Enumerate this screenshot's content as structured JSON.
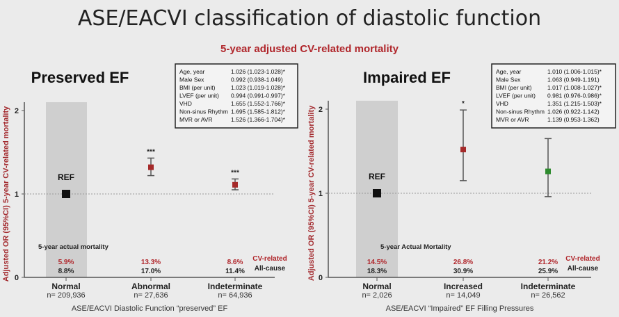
{
  "title": "ASE/EACVI classification of diastolic function",
  "subtitle": "5-year adjusted CV-related mortality",
  "colors": {
    "red": "#a52a2a",
    "green": "#2e8b2e",
    "band": "#cfcfcf",
    "accent": "#b0262b"
  },
  "chart_data": [
    {
      "type": "scatter",
      "title": "Preserved EF",
      "ylabel": "Adjusted OR (95%CI) 5-year CV-related mortality",
      "xlabel": "ASE/EACVI Diastolic Function “preserved” EF",
      "ylim": [
        0,
        2.1
      ],
      "yticks": [
        "0",
        "1",
        "2"
      ],
      "reference_line": 1,
      "ref_label": "REF",
      "mortality_heading": "5-year actual mortality",
      "cv_label": "CV-related",
      "allcause_label": "All-cause",
      "categories": [
        {
          "name": "Normal",
          "n": "n= 209,936",
          "or": 1.0,
          "lo": null,
          "hi": null,
          "sig": "",
          "color": "#111111",
          "cv": "5.9%",
          "all": "8.8%",
          "ref": true
        },
        {
          "name": "Abnormal",
          "n": "n= 27,636",
          "or": 1.32,
          "lo": 1.22,
          "hi": 1.43,
          "sig": "***",
          "color": "#a52a2a",
          "cv": "13.3%",
          "all": "17.0%",
          "ref": false
        },
        {
          "name": "Indeterminate",
          "n": "n= 64,936",
          "or": 1.11,
          "lo": 1.05,
          "hi": 1.18,
          "sig": "***",
          "color": "#a52a2a",
          "cv": "8.6%",
          "all": "11.4%",
          "ref": false
        }
      ],
      "covariates": [
        {
          "name": "Age, year",
          "value": "1.026 (1.023-1.028)*"
        },
        {
          "name": "Male Sex",
          "value": "0.992 (0.938-1.049)"
        },
        {
          "name": "BMI (per unit)",
          "value": "1.023 (1.019-1.028)*"
        },
        {
          "name": "LVEF (per unit)",
          "value": "0.994 (0.991-0.997)*"
        },
        {
          "name": "VHD",
          "value": "1.655 (1.552-1.766)*"
        },
        {
          "name": "Non-sinus Rhythm",
          "value": "1.695 (1.585-1.812)*"
        },
        {
          "name": "MVR or AVR",
          "value": "1.526 (1.366-1.704)*"
        }
      ]
    },
    {
      "type": "scatter",
      "title": "Impaired EF",
      "ylabel": "Adjusted OR (95%CI) 5-year CV-related mortality",
      "xlabel": "ASE/EACVI “Impaired” EF Filling Pressures",
      "ylim": [
        0,
        2.1
      ],
      "yticks": [
        "0",
        "1",
        "2"
      ],
      "reference_line": 1,
      "ref_label": "REF",
      "mortality_heading": "5-year Actual Mortality",
      "cv_label": "CV-related",
      "allcause_label": "All-cause",
      "categories": [
        {
          "name": "Normal",
          "n": "n= 2,026",
          "or": 1.0,
          "lo": null,
          "hi": null,
          "sig": "",
          "color": "#111111",
          "cv": "14.5%",
          "all": "18.3%",
          "ref": true
        },
        {
          "name": "Increased",
          "n": "n= 14,049",
          "or": 1.52,
          "lo": 1.15,
          "hi": 1.99,
          "sig": "*",
          "color": "#a52a2a",
          "cv": "26.8%",
          "all": "30.9%",
          "ref": false
        },
        {
          "name": "Indeterminate",
          "n": "n= 26,562",
          "or": 1.26,
          "lo": 0.96,
          "hi": 1.65,
          "sig": "",
          "color": "#2e8b2e",
          "cv": "21.2%",
          "all": "25.9%",
          "ref": false
        }
      ],
      "covariates": [
        {
          "name": "Age, year",
          "value": "1.010 (1.006-1.015)*"
        },
        {
          "name": "Male Sex",
          "value": "1.063 (0.949-1.191)"
        },
        {
          "name": "BMI (per unit)",
          "value": "1.017 (1.008-1.027)*"
        },
        {
          "name": "LVEF (per unit)",
          "value": "0.981 (0.976-0.986)*"
        },
        {
          "name": "VHD",
          "value": "1.351 (1.215-1.503)*"
        },
        {
          "name": "Non-sinus Rhythm",
          "value": "1.026 (0.922-1.142)"
        },
        {
          "name": "MVR or AVR",
          "value": "1.139 (0.953-1.362)"
        }
      ]
    }
  ]
}
